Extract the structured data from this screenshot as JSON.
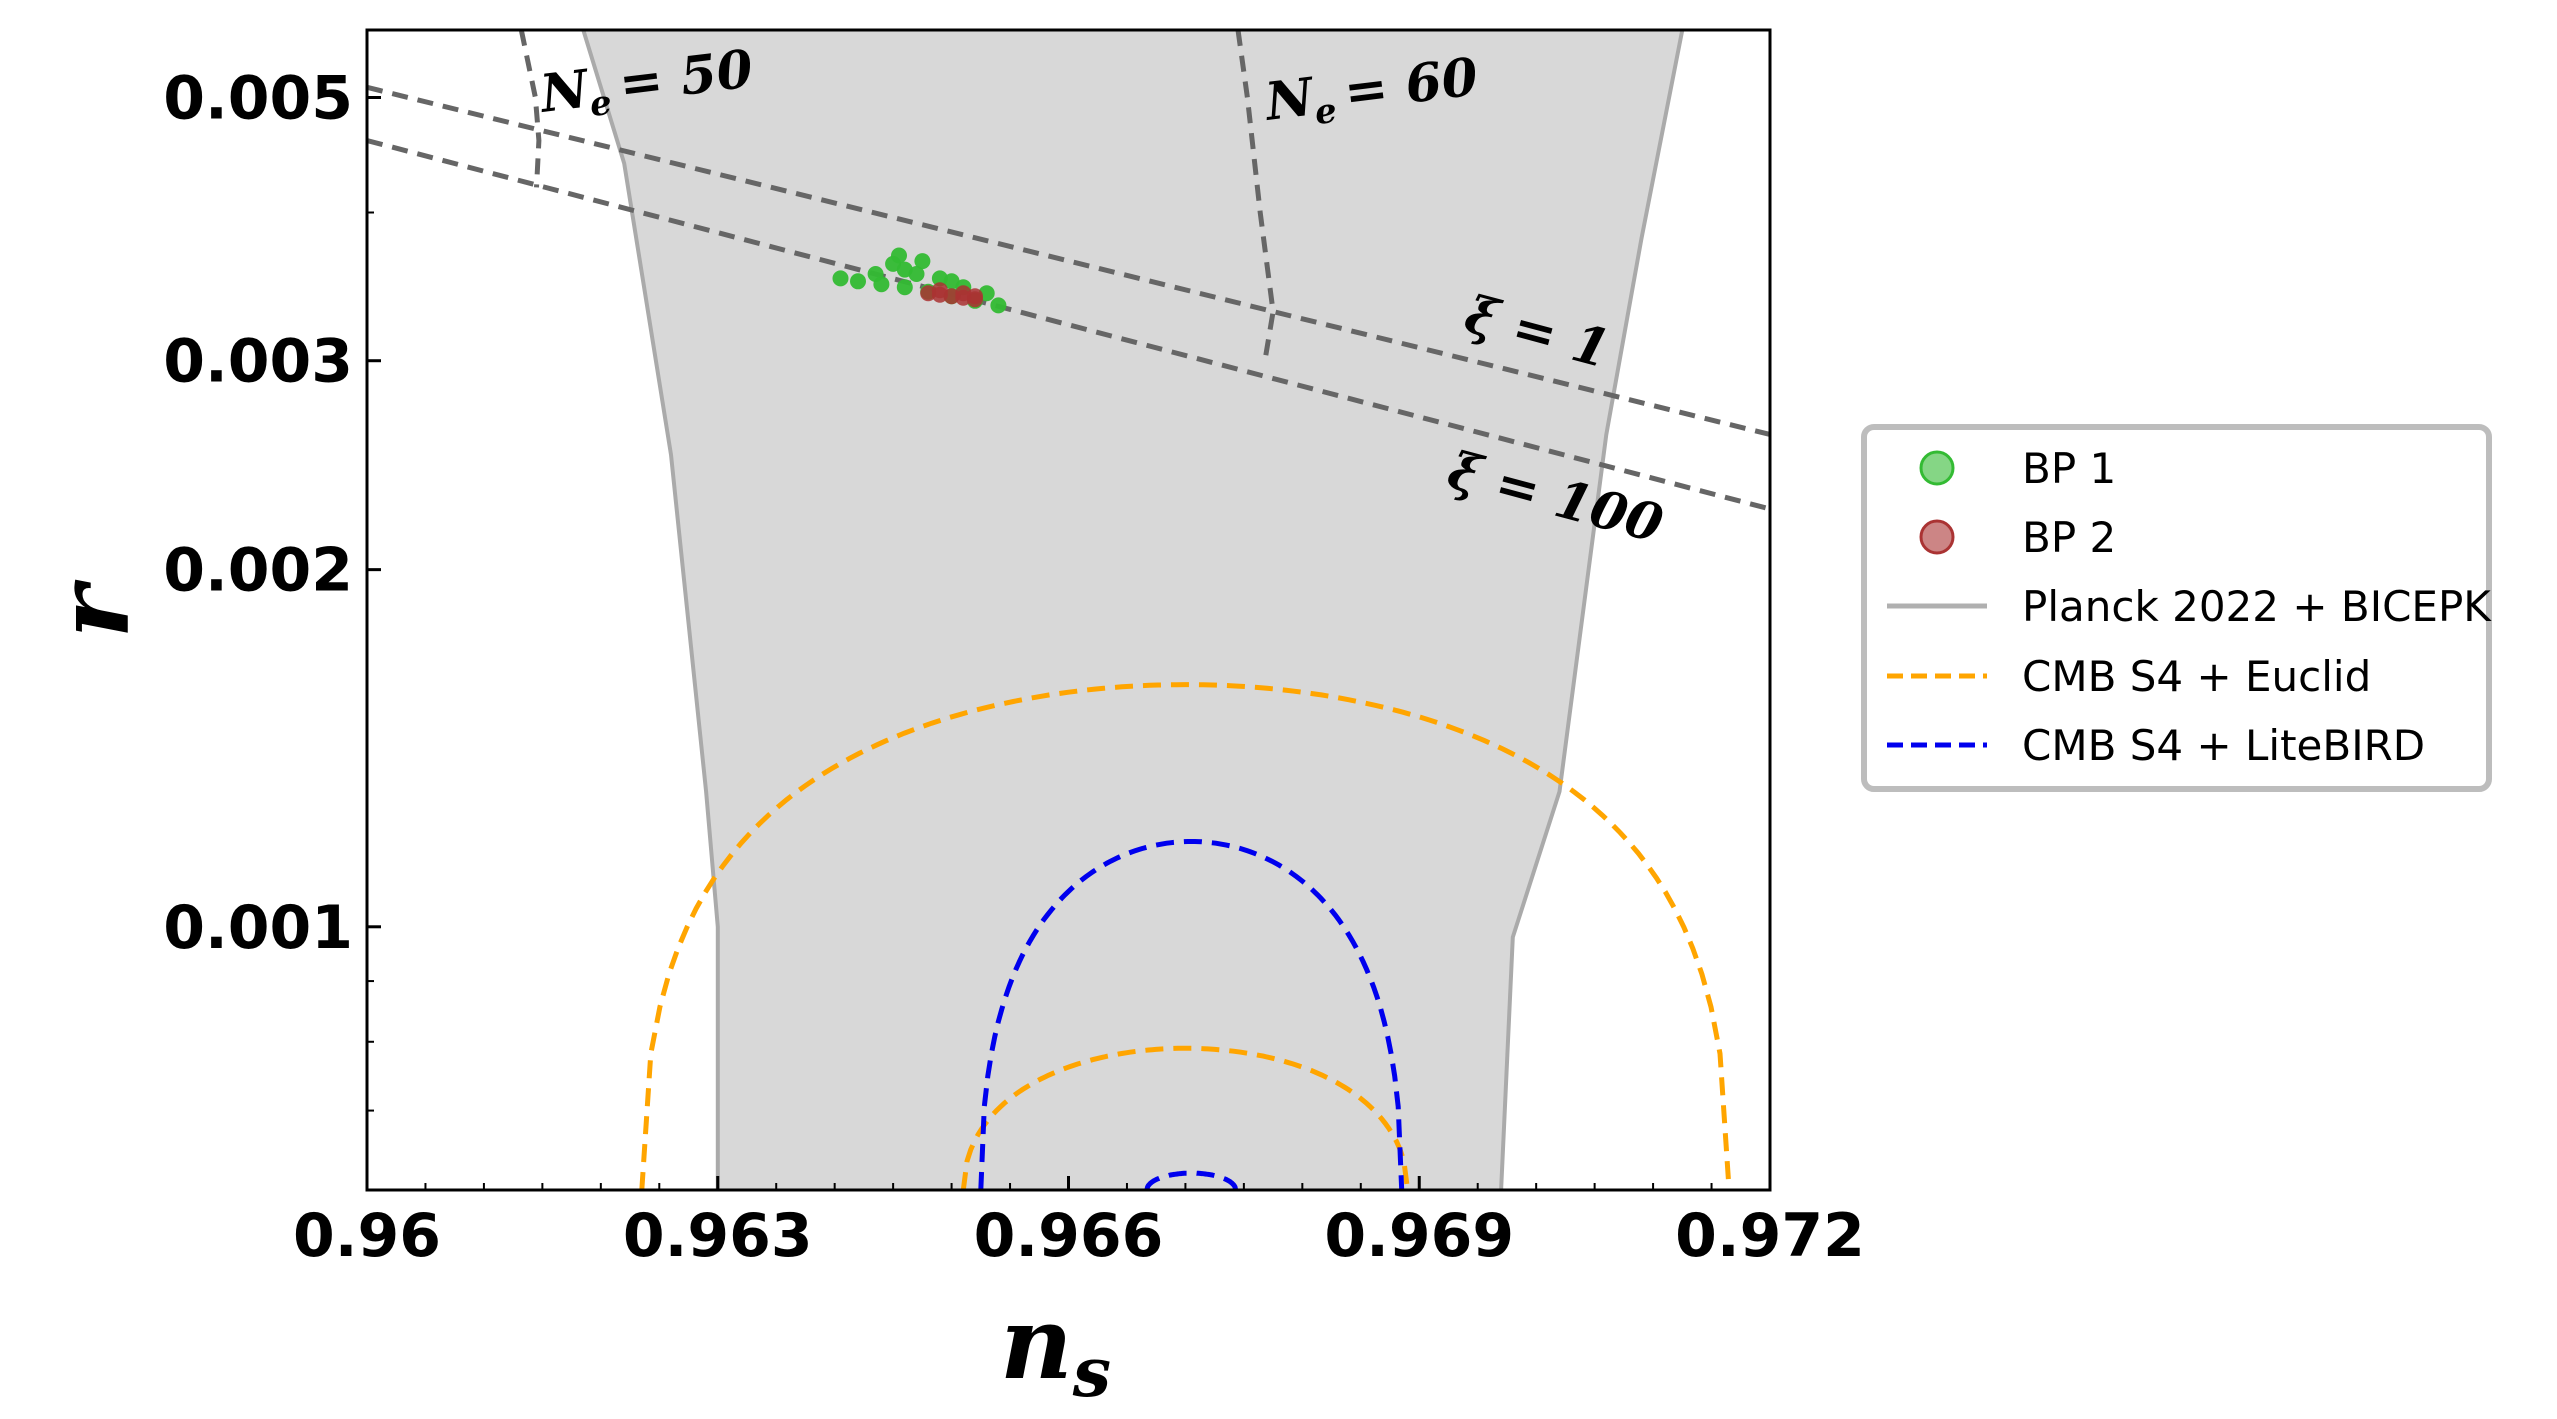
{
  "chart_data": {
    "type": "line",
    "xlabel": "n_s",
    "xlabel_main": "n",
    "xlabel_sub": "s",
    "ylabel": "r",
    "xlim": [
      0.96,
      0.972
    ],
    "ylim": [
      0.0006,
      0.0057
    ],
    "yscale": "log",
    "x_ticks": [
      0.96,
      0.963,
      0.966,
      0.969,
      0.972
    ],
    "x_tick_labels": [
      "0.96",
      "0.963",
      "0.966",
      "0.969",
      "0.972"
    ],
    "y_ticks": [
      0.001,
      0.002,
      0.003,
      0.005
    ],
    "y_tick_labels": [
      "0.001",
      "0.002",
      "0.003",
      "0.005"
    ],
    "grid": false,
    "legend_placement": "outside-right",
    "legend": [
      {
        "label": "BP 1",
        "marker": "circle",
        "color": "#33bb33"
      },
      {
        "label": "BP 2",
        "marker": "circle",
        "color": "#aa3333"
      },
      {
        "label": "Planck 2022 + BICEPK",
        "line": "solid",
        "color": "#b0b0b0"
      },
      {
        "label": "CMB S4 + Euclid",
        "line": "dashed",
        "color": "#ffa500"
      },
      {
        "label": "CMB S4 + LiteBIRD",
        "line": "dashed",
        "color": "#0000ee"
      }
    ],
    "planck_region": {
      "name": "Planck 2022 + BICEPK",
      "fill_color": "#d8d8d8",
      "edge_color": "#aaaaaa",
      "left_boundary": [
        [
          0.963,
          0.0006
        ],
        [
          0.963,
          0.001
        ],
        [
          0.9629,
          0.0013
        ],
        [
          0.9626,
          0.0025
        ],
        [
          0.9622,
          0.0044
        ],
        [
          0.96185,
          0.0057
        ]
      ],
      "right_boundary": [
        [
          0.9697,
          0.0006
        ],
        [
          0.9698,
          0.00098
        ],
        [
          0.9702,
          0.0013
        ],
        [
          0.9706,
          0.0026
        ],
        [
          0.9709,
          0.0038
        ],
        [
          0.97125,
          0.0057
        ]
      ]
    },
    "efold_lines": [
      {
        "label_main": "N",
        "label_sub": "e",
        "label_value": "= 50",
        "color": "#666666",
        "points": [
          [
            0.96132,
            0.0057
          ],
          [
            0.96144,
            0.005
          ],
          [
            0.96147,
            0.0046
          ],
          [
            0.96145,
            0.0042
          ]
        ]
      },
      {
        "label_main": "N",
        "label_sub": "e",
        "label_value": "= 60",
        "color": "#666666",
        "points": [
          [
            0.96745,
            0.0057
          ],
          [
            0.96753,
            0.005
          ],
          [
            0.96764,
            0.004
          ],
          [
            0.96775,
            0.0033
          ],
          [
            0.96768,
            0.003
          ]
        ]
      }
    ],
    "xi_lines": [
      {
        "label": "ξ = 1",
        "color": "#666666",
        "points": [
          [
            0.96,
            0.0051
          ],
          [
            0.972,
            0.0026
          ]
        ]
      },
      {
        "label": "ξ = 100",
        "color": "#666666",
        "points": [
          [
            0.96,
            0.0046
          ],
          [
            0.972,
            0.00225
          ]
        ]
      }
    ],
    "contours": [
      {
        "name": "CMB S4 + Euclid",
        "style": "dashed",
        "color": "#ffa500",
        "center": 0.967,
        "halfwidth": 0.00465,
        "ymin": 0.0006,
        "ymax": 0.0016
      },
      {
        "name": "CMB S4 + Euclid",
        "style": "dashed",
        "color": "#ffa500",
        "center": 0.967,
        "halfwidth": 0.0019,
        "ymin": 0.0006,
        "ymax": 0.00079
      },
      {
        "name": "CMB S4 + LiteBIRD",
        "style": "dashed",
        "color": "#0000ee",
        "center": 0.96705,
        "halfwidth": 0.0018,
        "ymin": 0.0006,
        "ymax": 0.00118
      },
      {
        "name": "CMB S4 + LiteBIRD",
        "style": "dashed",
        "color": "#0000ee",
        "center": 0.96705,
        "halfwidth": 0.00038,
        "ymin": 0.0006,
        "ymax": 0.00062
      }
    ],
    "scatter_series": [
      {
        "name": "BP 1",
        "color": "#33bb33",
        "points": [
          [
            0.96405,
            0.00352
          ],
          [
            0.9642,
            0.0035
          ],
          [
            0.9644,
            0.00348
          ],
          [
            0.9646,
            0.00346
          ],
          [
            0.9648,
            0.00343
          ],
          [
            0.965,
            0.0034
          ],
          [
            0.9652,
            0.00337
          ],
          [
            0.9654,
            0.00334
          ],
          [
            0.9645,
            0.00362
          ],
          [
            0.9646,
            0.00358
          ],
          [
            0.9647,
            0.00355
          ],
          [
            0.9649,
            0.00352
          ],
          [
            0.96455,
            0.00368
          ],
          [
            0.96475,
            0.00364
          ],
          [
            0.9651,
            0.00346
          ],
          [
            0.9653,
            0.00342
          ],
          [
            0.96435,
            0.00355
          ],
          [
            0.965,
            0.0035
          ]
        ]
      },
      {
        "name": "BP 2",
        "color": "#aa3333",
        "points": [
          [
            0.9648,
            0.00342
          ],
          [
            0.9649,
            0.00341
          ],
          [
            0.965,
            0.0034
          ],
          [
            0.9651,
            0.00339
          ],
          [
            0.9652,
            0.00338
          ],
          [
            0.9649,
            0.00344
          ],
          [
            0.9651,
            0.00342
          ],
          [
            0.9652,
            0.0034
          ]
        ]
      }
    ]
  }
}
